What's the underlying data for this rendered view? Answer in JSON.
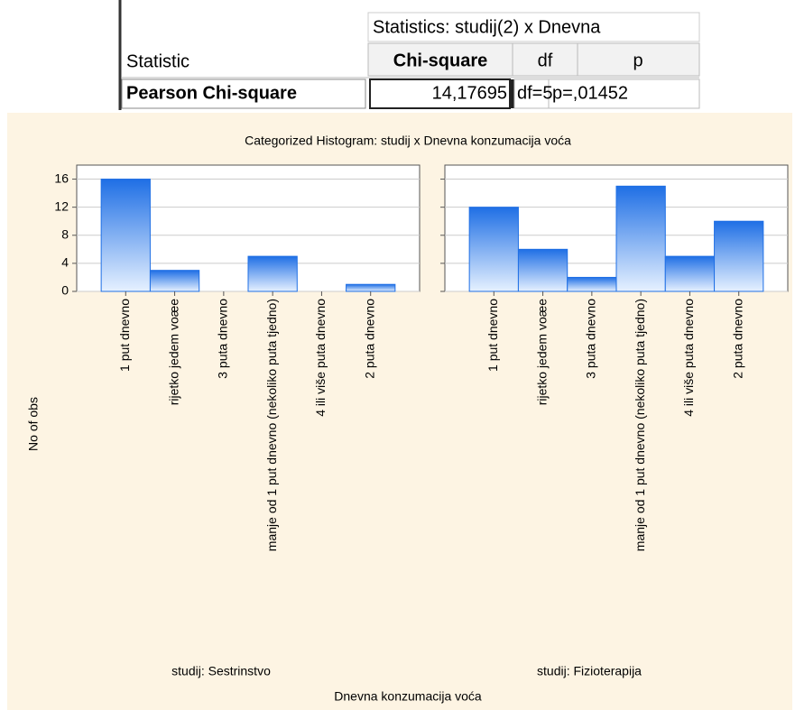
{
  "table": {
    "header": "Statistics: studij(2) x Dnevna",
    "columns": [
      "Statistic",
      "Chi-square",
      "df",
      "p"
    ],
    "rows": [
      [
        "Pearson Chi-square",
        "14,17695",
        "df=5",
        "p=,01452"
      ]
    ]
  },
  "figure": {
    "title": "Categorized Histogram: studij x Dnevna konzumacija voća",
    "ylabel": "No of obs",
    "xlabel": "Dnevna konzumacija voća"
  },
  "chart_data": [
    {
      "type": "bar",
      "subtitle": "studij: Sestrinstvo",
      "categories": [
        "1 put dnevno",
        "rijetko jedem voæe",
        "3 puta dnevno",
        "manje od 1 put dnevno (nekoliko puta tjedno)",
        "4 ili više puta dnevno",
        "2 puta dnevno"
      ],
      "values": [
        16,
        3,
        0,
        5,
        0,
        1
      ],
      "color": "#1f6fe5",
      "ylim": [
        0,
        18
      ],
      "yticks": [
        0,
        4,
        8,
        12,
        16
      ],
      "grid": true
    },
    {
      "type": "bar",
      "subtitle": "studij: Fizioterapija",
      "categories": [
        "1 put dnevno",
        "rijetko jedem voæe",
        "3 puta dnevno",
        "manje od 1 put dnevno (nekoliko puta tjedno)",
        "4 ili više puta dnevno",
        "2 puta dnevno"
      ],
      "values": [
        12,
        6,
        2,
        15,
        5,
        10
      ],
      "color": "#1f6fe5",
      "ylim": [
        0,
        18
      ],
      "yticks": [
        0,
        4,
        8,
        12,
        16
      ],
      "grid": true
    }
  ]
}
